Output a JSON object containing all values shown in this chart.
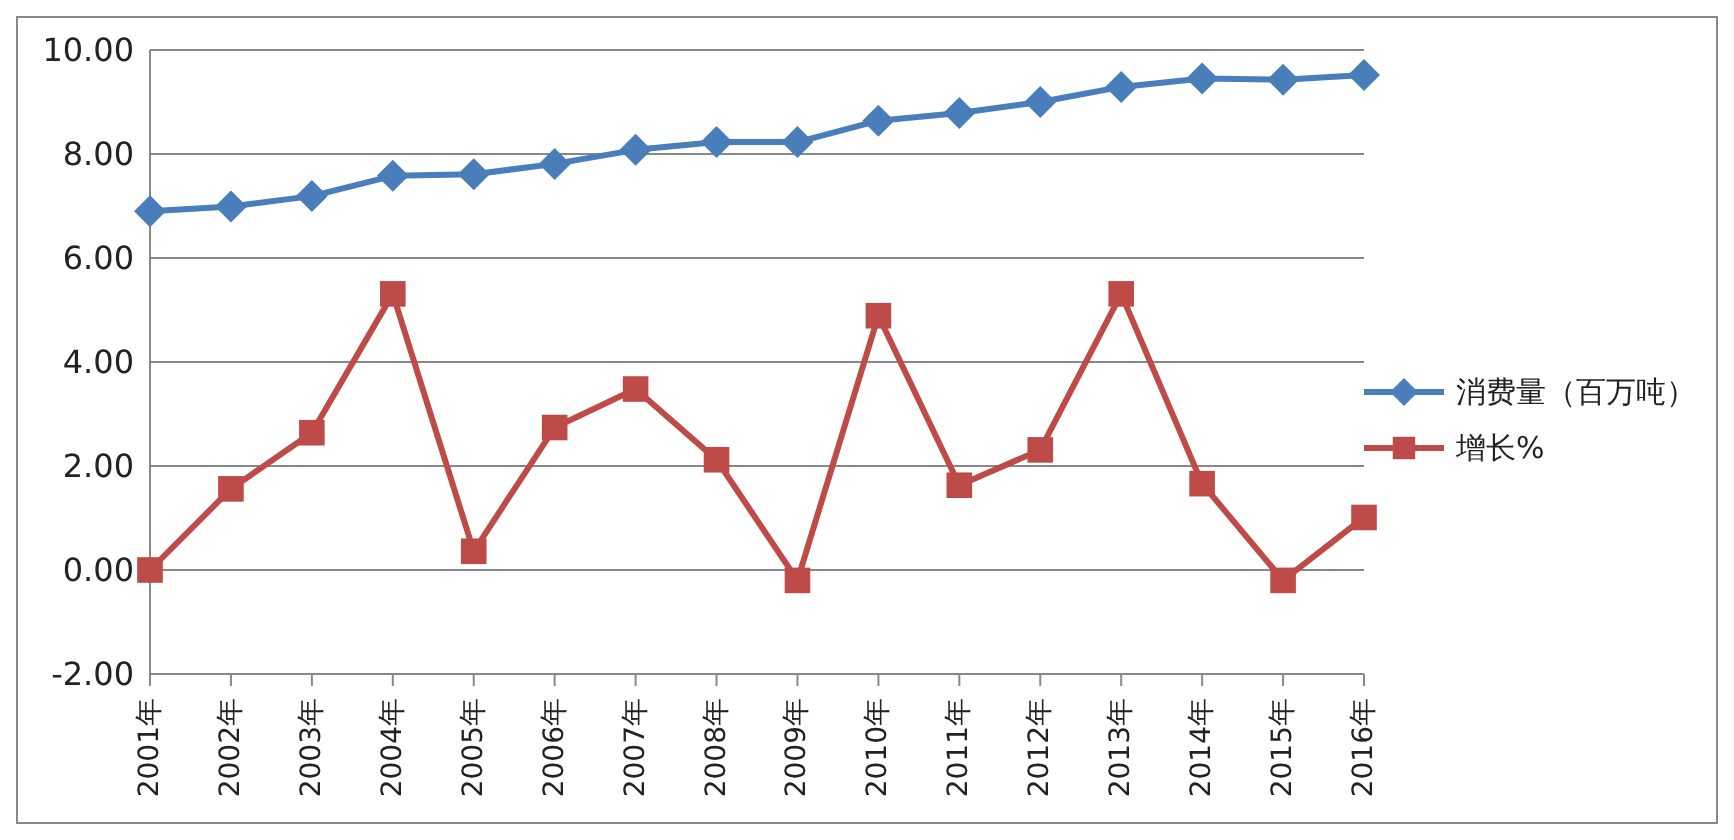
{
  "chart_data": {
    "type": "line",
    "categories": [
      "2001年",
      "2002年",
      "2003年",
      "2004年",
      "2005年",
      "2006年",
      "2007年",
      "2008年",
      "2009年",
      "2010年",
      "2011年",
      "2012年",
      "2013年",
      "2014年",
      "2015年",
      "2016年"
    ],
    "series": [
      {
        "name": "消费量（百万吨）",
        "color": "#4a7ebb",
        "marker": "diamond",
        "values": [
          6.9,
          6.99,
          7.19,
          7.58,
          7.61,
          7.81,
          8.08,
          8.23,
          8.23,
          8.64,
          8.79,
          9.0,
          9.29,
          9.45,
          9.43,
          9.52
        ]
      },
      {
        "name": "增长%",
        "color": "#be4b48",
        "marker": "square",
        "values": [
          0,
          1.56,
          2.64,
          5.31,
          0.36,
          2.74,
          3.48,
          2.12,
          -0.2,
          4.89,
          1.63,
          2.31,
          5.31,
          1.66,
          -0.2,
          1.01
        ]
      }
    ],
    "ylim": [
      -2,
      10
    ],
    "yticks": [
      {
        "value": -2,
        "label": "-2.00"
      },
      {
        "value": 0,
        "label": "0.00"
      },
      {
        "value": 2,
        "label": "2.00"
      },
      {
        "value": 4,
        "label": "4.00"
      },
      {
        "value": 6,
        "label": "6.00"
      },
      {
        "value": 8,
        "label": "8.00"
      },
      {
        "value": 10,
        "label": "10.00"
      }
    ],
    "grid": "y",
    "legend": "right",
    "line_style": "solid"
  }
}
